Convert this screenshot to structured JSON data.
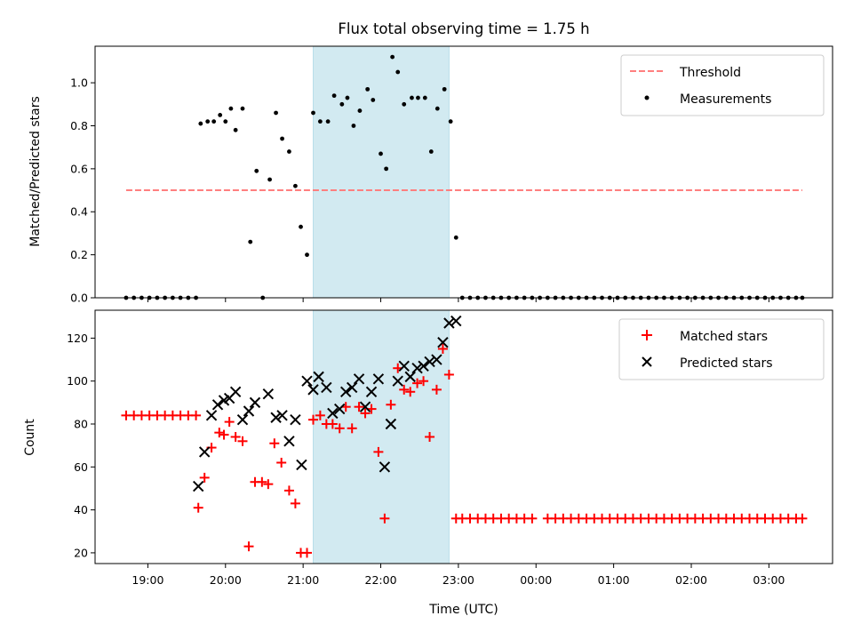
{
  "chart_data": [
    {
      "type": "scatter",
      "title": "Flux total observing time = 1.75 h",
      "ylabel": "Matched/Predicted stars",
      "xlabel": "",
      "ylim": [
        0,
        1.17
      ],
      "yticks": [
        "0.0",
        "0.2",
        "0.4",
        "0.6",
        "0.8",
        "1.0"
      ],
      "x_unit": "hours since 00:00 UTC of first night (values >24 are after midnight)",
      "shaded_region": {
        "x": [
          21.13,
          22.88
        ],
        "color": "#add8e6"
      },
      "legend": {
        "placement": "upper right",
        "entries": [
          "Threshold",
          "Measurements"
        ]
      },
      "series": [
        {
          "name": "Threshold",
          "style": "dashed-line",
          "color": "#ff7f7f",
          "x": [
            18.72,
            27.43
          ],
          "y": [
            0.5,
            0.5
          ]
        },
        {
          "name": "Measurements",
          "style": "dot",
          "color": "#000000",
          "points": [
            [
              18.72,
              0
            ],
            [
              18.82,
              0
            ],
            [
              18.92,
              0
            ],
            [
              19.02,
              0
            ],
            [
              19.12,
              0
            ],
            [
              19.22,
              0
            ],
            [
              19.32,
              0
            ],
            [
              19.42,
              0
            ],
            [
              19.52,
              0
            ],
            [
              19.62,
              0
            ],
            [
              19.68,
              0.81
            ],
            [
              19.77,
              0.82
            ],
            [
              19.85,
              0.82
            ],
            [
              19.93,
              0.85
            ],
            [
              20.0,
              0.82
            ],
            [
              20.07,
              0.88
            ],
            [
              20.13,
              0.78
            ],
            [
              20.22,
              0.88
            ],
            [
              20.32,
              0.26
            ],
            [
              20.4,
              0.59
            ],
            [
              20.48,
              0.0
            ],
            [
              20.57,
              0.55
            ],
            [
              20.65,
              0.86
            ],
            [
              20.73,
              0.74
            ],
            [
              20.82,
              0.68
            ],
            [
              20.9,
              0.52
            ],
            [
              20.97,
              0.33
            ],
            [
              21.05,
              0.2
            ],
            [
              21.13,
              0.86
            ],
            [
              21.22,
              0.82
            ],
            [
              21.32,
              0.82
            ],
            [
              21.4,
              0.94
            ],
            [
              21.5,
              0.9
            ],
            [
              21.57,
              0.93
            ],
            [
              21.65,
              0.8
            ],
            [
              21.73,
              0.87
            ],
            [
              21.83,
              0.97
            ],
            [
              21.9,
              0.92
            ],
            [
              22.0,
              0.67
            ],
            [
              22.07,
              0.6
            ],
            [
              22.15,
              1.12
            ],
            [
              22.22,
              1.05
            ],
            [
              22.3,
              0.9
            ],
            [
              22.4,
              0.93
            ],
            [
              22.48,
              0.93
            ],
            [
              22.57,
              0.93
            ],
            [
              22.65,
              0.68
            ],
            [
              22.73,
              0.88
            ],
            [
              22.82,
              0.97
            ],
            [
              22.9,
              0.82
            ],
            [
              22.97,
              0.28
            ],
            [
              23.05,
              0
            ],
            [
              23.15,
              0
            ],
            [
              23.25,
              0
            ],
            [
              23.35,
              0
            ],
            [
              23.45,
              0
            ],
            [
              23.55,
              0
            ],
            [
              23.65,
              0
            ],
            [
              23.75,
              0
            ],
            [
              23.85,
              0
            ],
            [
              23.95,
              0
            ],
            [
              24.05,
              0
            ],
            [
              24.15,
              0
            ],
            [
              24.25,
              0
            ],
            [
              24.35,
              0
            ],
            [
              24.45,
              0
            ],
            [
              24.55,
              0
            ],
            [
              24.65,
              0
            ],
            [
              24.75,
              0
            ],
            [
              24.85,
              0
            ],
            [
              24.95,
              0
            ],
            [
              25.05,
              0
            ],
            [
              25.15,
              0
            ],
            [
              25.25,
              0
            ],
            [
              25.35,
              0
            ],
            [
              25.45,
              0
            ],
            [
              25.55,
              0
            ],
            [
              25.65,
              0
            ],
            [
              25.75,
              0
            ],
            [
              25.85,
              0
            ],
            [
              25.95,
              0
            ],
            [
              26.05,
              0
            ],
            [
              26.15,
              0
            ],
            [
              26.25,
              0
            ],
            [
              26.35,
              0
            ],
            [
              26.45,
              0
            ],
            [
              26.55,
              0
            ],
            [
              26.65,
              0
            ],
            [
              26.75,
              0
            ],
            [
              26.85,
              0
            ],
            [
              26.95,
              0
            ],
            [
              27.05,
              0
            ],
            [
              27.15,
              0
            ],
            [
              27.25,
              0
            ],
            [
              27.35,
              0
            ],
            [
              27.43,
              0
            ]
          ]
        }
      ]
    },
    {
      "type": "scatter",
      "title": "",
      "ylabel": "Count",
      "xlabel": "Time (UTC)",
      "ylim": [
        15,
        133
      ],
      "yticks": [
        "20",
        "40",
        "60",
        "80",
        "100",
        "120"
      ],
      "xticks": [
        "19:00",
        "20:00",
        "21:00",
        "22:00",
        "23:00",
        "00:00",
        "01:00",
        "02:00",
        "03:00"
      ],
      "shaded_region": {
        "x": [
          21.13,
          22.88
        ],
        "color": "#add8e6"
      },
      "legend": {
        "placement": "upper right",
        "entries": [
          "Matched stars",
          "Predicted stars"
        ]
      },
      "series": [
        {
          "name": "Matched stars",
          "marker": "plus",
          "color": "#ff0000",
          "points": [
            [
              18.72,
              84
            ],
            [
              18.82,
              84
            ],
            [
              18.92,
              84
            ],
            [
              19.02,
              84
            ],
            [
              19.12,
              84
            ],
            [
              19.22,
              84
            ],
            [
              19.32,
              84
            ],
            [
              19.42,
              84
            ],
            [
              19.52,
              84
            ],
            [
              19.62,
              84
            ],
            [
              19.65,
              41
            ],
            [
              19.73,
              55
            ],
            [
              19.82,
              69
            ],
            [
              19.92,
              76
            ],
            [
              19.98,
              75
            ],
            [
              20.05,
              81
            ],
            [
              20.13,
              74
            ],
            [
              20.22,
              72
            ],
            [
              20.3,
              23
            ],
            [
              20.38,
              53
            ],
            [
              20.47,
              53
            ],
            [
              20.55,
              52
            ],
            [
              20.63,
              71
            ],
            [
              20.72,
              62
            ],
            [
              20.82,
              49
            ],
            [
              20.9,
              43
            ],
            [
              20.97,
              20
            ],
            [
              21.05,
              20
            ],
            [
              21.13,
              82
            ],
            [
              21.22,
              84
            ],
            [
              21.3,
              80
            ],
            [
              21.38,
              80
            ],
            [
              21.47,
              78
            ],
            [
              21.55,
              88
            ],
            [
              21.63,
              78
            ],
            [
              21.72,
              88
            ],
            [
              21.8,
              85
            ],
            [
              21.88,
              87
            ],
            [
              21.97,
              67
            ],
            [
              22.05,
              36
            ],
            [
              22.13,
              89
            ],
            [
              22.22,
              106
            ],
            [
              22.3,
              96
            ],
            [
              22.38,
              95
            ],
            [
              22.47,
              99
            ],
            [
              22.55,
              100
            ],
            [
              22.63,
              74
            ],
            [
              22.72,
              96
            ],
            [
              22.8,
              115
            ],
            [
              22.88,
              103
            ],
            [
              22.97,
              36
            ],
            [
              23.05,
              36
            ],
            [
              23.15,
              36
            ],
            [
              23.25,
              36
            ],
            [
              23.35,
              36
            ],
            [
              23.45,
              36
            ],
            [
              23.55,
              36
            ],
            [
              23.65,
              36
            ],
            [
              23.75,
              36
            ],
            [
              23.85,
              36
            ],
            [
              23.95,
              36
            ],
            [
              24.15,
              36
            ],
            [
              24.25,
              36
            ],
            [
              24.35,
              36
            ],
            [
              24.45,
              36
            ],
            [
              24.55,
              36
            ],
            [
              24.65,
              36
            ],
            [
              24.75,
              36
            ],
            [
              24.85,
              36
            ],
            [
              24.95,
              36
            ],
            [
              25.05,
              36
            ],
            [
              25.15,
              36
            ],
            [
              25.25,
              36
            ],
            [
              25.35,
              36
            ],
            [
              25.45,
              36
            ],
            [
              25.55,
              36
            ],
            [
              25.65,
              36
            ],
            [
              25.75,
              36
            ],
            [
              25.85,
              36
            ],
            [
              25.95,
              36
            ],
            [
              26.05,
              36
            ],
            [
              26.15,
              36
            ],
            [
              26.25,
              36
            ],
            [
              26.35,
              36
            ],
            [
              26.45,
              36
            ],
            [
              26.55,
              36
            ],
            [
              26.65,
              36
            ],
            [
              26.75,
              36
            ],
            [
              26.85,
              36
            ],
            [
              26.95,
              36
            ],
            [
              27.05,
              36
            ],
            [
              27.15,
              36
            ],
            [
              27.25,
              36
            ],
            [
              27.35,
              36
            ],
            [
              27.43,
              36
            ]
          ]
        },
        {
          "name": "Predicted stars",
          "marker": "x",
          "color": "#000000",
          "points": [
            [
              19.65,
              51
            ],
            [
              19.73,
              67
            ],
            [
              19.82,
              84
            ],
            [
              19.9,
              89
            ],
            [
              19.98,
              91
            ],
            [
              20.05,
              92
            ],
            [
              20.13,
              95
            ],
            [
              20.22,
              82
            ],
            [
              20.3,
              86
            ],
            [
              20.38,
              90
            ],
            [
              20.55,
              94
            ],
            [
              20.65,
              83
            ],
            [
              20.73,
              84
            ],
            [
              20.82,
              72
            ],
            [
              20.9,
              82
            ],
            [
              20.98,
              61
            ],
            [
              21.05,
              100
            ],
            [
              21.13,
              96
            ],
            [
              21.2,
              102
            ],
            [
              21.3,
              97
            ],
            [
              21.38,
              85
            ],
            [
              21.47,
              87
            ],
            [
              21.55,
              95
            ],
            [
              21.63,
              97
            ],
            [
              21.72,
              101
            ],
            [
              21.8,
              88
            ],
            [
              21.88,
              95
            ],
            [
              21.97,
              101
            ],
            [
              22.05,
              60
            ],
            [
              22.13,
              80
            ],
            [
              22.22,
              100
            ],
            [
              22.3,
              107
            ],
            [
              22.38,
              102
            ],
            [
              22.47,
              106
            ],
            [
              22.55,
              107
            ],
            [
              22.63,
              109
            ],
            [
              22.72,
              110
            ],
            [
              22.8,
              118
            ],
            [
              22.88,
              127
            ],
            [
              22.97,
              128
            ]
          ]
        }
      ]
    }
  ]
}
